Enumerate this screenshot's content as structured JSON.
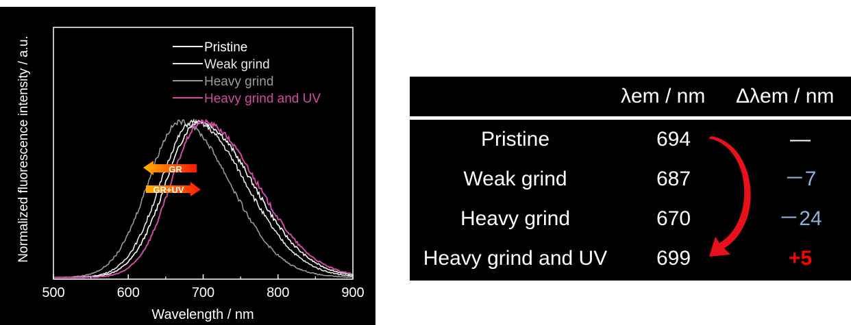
{
  "chart_data": {
    "type": "line",
    "xlabel": "Wavelength / nm",
    "ylabel": "Normalized fluorescence intensity / a.u.",
    "xlim": [
      500,
      900
    ],
    "ylim": [
      0,
      1.0
    ],
    "x_ticks": [
      "500",
      "600",
      "700",
      "800",
      "900"
    ],
    "y_ticks_labeled": false,
    "legend_position": "top-right",
    "series": [
      {
        "name": "Pristine",
        "color": "#ffffff",
        "peak_nm": 694,
        "sigma_left": 44,
        "sigma_right": 72
      },
      {
        "name": "Weak grind",
        "color": "#e6e6e6",
        "peak_nm": 687,
        "sigma_left": 44,
        "sigma_right": 70
      },
      {
        "name": "Heavy grind",
        "color": "#9a9a9a",
        "peak_nm": 670,
        "sigma_left": 44,
        "sigma_right": 66
      },
      {
        "name": "Heavy grind and UV",
        "color": "#d24aa7",
        "peak_nm": 699,
        "sigma_left": 42,
        "sigma_right": 73
      }
    ],
    "annotations": [
      {
        "text": "GR",
        "direction": "left"
      },
      {
        "text": "GR+UV",
        "direction": "right"
      }
    ]
  },
  "table": {
    "headers": [
      "λem / nm",
      "Δλem / nm"
    ],
    "rows": [
      {
        "name": "Pristine",
        "value": "694",
        "delta": "—",
        "delta_color": "#ffffff"
      },
      {
        "name": "Weak grind",
        "value": "687",
        "delta": "－7",
        "delta_color": "#8db0dc"
      },
      {
        "name": "Heavy grind",
        "value": "670",
        "delta": "－24",
        "delta_color": "#8db0dc"
      },
      {
        "name": "Heavy grind and UV",
        "value": "699",
        "delta": "+5",
        "delta_color": "#ff0000"
      }
    ],
    "arrow_color": "#e8111a"
  }
}
